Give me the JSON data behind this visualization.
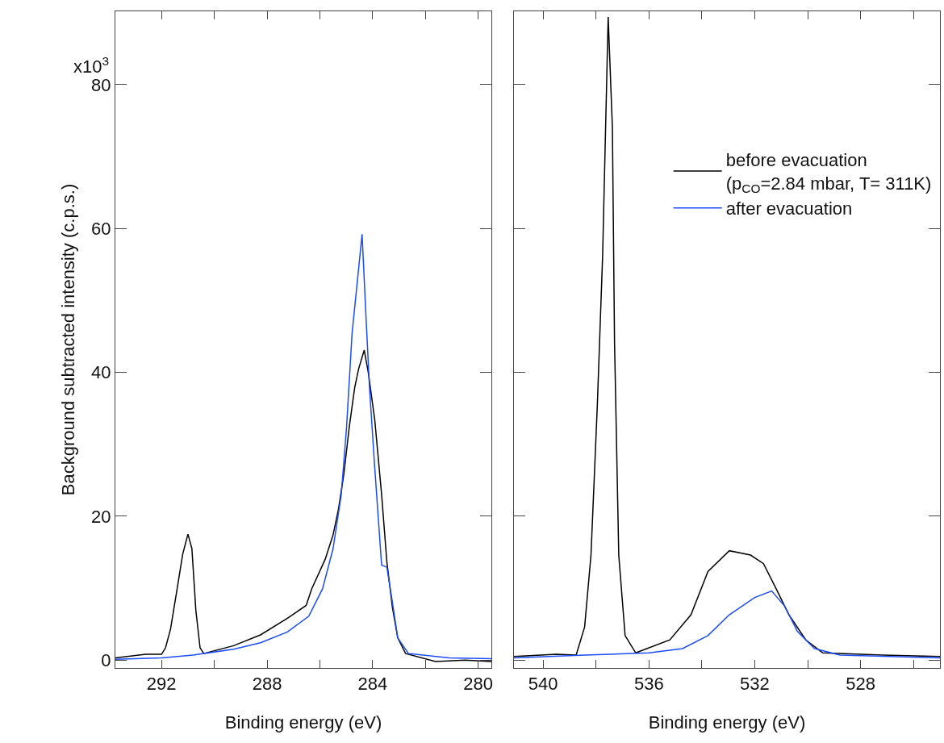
{
  "chart_data": [
    {
      "type": "line",
      "xlabel": "Binding energy (eV)",
      "ylabel": "Background subtracted intensity (c.p.s.)",
      "annotations": [
        "x10$^{3}$"
      ],
      "xlim": [
        293.75,
        279.5
      ],
      "xticks": [
        292,
        {
          "value": 290,
          "label": null
        },
        288,
        {
          "value": 286,
          "label": null
        },
        284,
        {
          "value": 282,
          "label": null
        },
        280
      ],
      "ylim": [
        -1.1,
        90.2
      ],
      "yticks": [
        0,
        20,
        40,
        60,
        80
      ],
      "legend": false,
      "series": [
        {
          "color": "#000000",
          "x": [
            293.75,
            292.6,
            292.0,
            291.85,
            291.66,
            291.41,
            291.2,
            291.0,
            290.85,
            290.7,
            290.54,
            290.4,
            289.27,
            288.25,
            287.23,
            286.52,
            286.31,
            285.8,
            285.5,
            285.29,
            285.09,
            284.89,
            284.68,
            284.53,
            284.32,
            284.17,
            283.92,
            283.66,
            283.46,
            283.25,
            283.05,
            282.75,
            281.62,
            280.5,
            279.5
          ],
          "values": [
            0.3,
            0.8,
            0.8,
            1.7,
            4.3,
            9.9,
            14.7,
            17.5,
            15.5,
            6.9,
            1.7,
            0.9,
            2.0,
            3.5,
            5.8,
            7.6,
            9.9,
            14.0,
            17.4,
            21.1,
            25.9,
            32.3,
            37.9,
            40.5,
            43.1,
            40.1,
            33.4,
            23.0,
            13.6,
            7.3,
            3.1,
            0.9,
            -0.2,
            0.0,
            -0.2
          ]
        },
        {
          "color": "#1a4cff",
          "x": [
            293.75,
            292.0,
            290.8,
            289.27,
            288.25,
            287.23,
            286.42,
            285.9,
            285.5,
            285.19,
            284.99,
            284.78,
            284.4,
            284.27,
            284.12,
            283.92,
            283.66,
            283.46,
            283.25,
            283.05,
            282.64,
            281.1,
            279.5
          ],
          "values": [
            0.1,
            0.3,
            0.7,
            1.5,
            2.4,
            3.9,
            6.1,
            9.9,
            15.5,
            23.0,
            32.3,
            45.4,
            59.2,
            49.1,
            37.9,
            26.7,
            13.2,
            12.9,
            8.0,
            3.1,
            0.9,
            0.3,
            0.2
          ]
        }
      ]
    },
    {
      "type": "line",
      "xlabel": "Binding energy (eV)",
      "xlim": [
        541.1,
        525.0
      ],
      "xticks": [
        540,
        {
          "value": 538,
          "label": null
        },
        536,
        {
          "value": 534,
          "label": null
        },
        532,
        {
          "value": 530,
          "label": null
        },
        528,
        {
          "value": 526,
          "label": null
        }
      ],
      "ylim": [
        -1.1,
        90.2
      ],
      "yticks": [
        {
          "value": 0,
          "label": null
        },
        {
          "value": 20,
          "label": null
        },
        {
          "value": 40,
          "label": null
        },
        {
          "value": 60,
          "label": null
        },
        {
          "value": 80,
          "label": null
        }
      ],
      "tick_labels": "x",
      "legend": "right",
      "series": [
        {
          "name": "before evacuation\n(p$_{CO}$=2.84 mbar, T= 311K)",
          "color": "#000000",
          "x": [
            541.1,
            539.5,
            538.75,
            538.43,
            538.19,
            537.95,
            537.75,
            537.54,
            537.38,
            537.3,
            537.14,
            536.9,
            536.5,
            535.21,
            534.41,
            533.77,
            532.96,
            532.16,
            531.67,
            531.19,
            530.71,
            530.07,
            529.43,
            527.17,
            525.0
          ],
          "values": [
            0.5,
            0.8,
            0.7,
            4.6,
            14.6,
            35.4,
            56.2,
            89.4,
            74.0,
            44.3,
            14.6,
            3.4,
            1.0,
            2.8,
            6.3,
            12.3,
            15.2,
            14.6,
            13.4,
            9.9,
            6.3,
            2.8,
            1.0,
            0.7,
            0.5
          ]
        },
        {
          "name": "after evacuation",
          "color": "#1a4cff",
          "x": [
            541.1,
            538.43,
            536.0,
            534.73,
            533.77,
            532.96,
            532.0,
            531.36,
            530.87,
            530.39,
            529.75,
            528.78,
            525.0
          ],
          "values": [
            0.3,
            0.7,
            1.0,
            1.6,
            3.4,
            6.3,
            8.7,
            9.6,
            7.5,
            4.0,
            1.6,
            0.7,
            0.3
          ]
        }
      ]
    }
  ]
}
